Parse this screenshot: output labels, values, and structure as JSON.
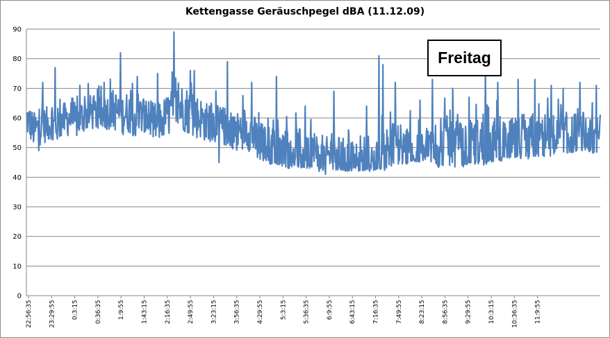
{
  "chart_data": {
    "type": "line",
    "title": "Kettengasse Geräuschpegel dBA (11.12.09)",
    "xlabel": "",
    "ylabel": "",
    "ylim": [
      0,
      90
    ],
    "yticks": [
      0,
      10,
      20,
      30,
      40,
      50,
      60,
      70,
      80,
      90
    ],
    "grid": "horizontal",
    "legend": "none",
    "annotation": "Freitag",
    "x_tick_labels": [
      "22:56:35",
      "23:29:55",
      "0:3:15",
      "0:36:35",
      "1:9:55",
      "1:43:15",
      "2:16:35",
      "2:49:55",
      "3:23:15",
      "3:56:35",
      "4:29:55",
      "5:3:15",
      "5:36:35",
      "6:9:55",
      "6:43:15",
      "7:16:35",
      "7:49:55",
      "8:23:15",
      "8:56:35",
      "9:29:55",
      "10:3:15",
      "10:36:35",
      "11:9:55"
    ],
    "series": [
      {
        "color": "#4f81bd",
        "baseline": [
          60,
          56,
          57,
          58,
          57,
          59,
          60,
          59,
          61,
          62,
          61,
          62,
          63,
          61,
          62,
          60,
          61,
          59,
          58,
          60,
          62,
          64,
          63,
          61,
          60,
          58,
          58,
          57,
          56,
          55,
          57,
          55,
          51,
          50,
          49,
          48,
          49,
          50,
          48,
          48,
          47,
          46,
          48,
          47,
          46,
          45,
          44,
          44,
          45,
          48,
          50,
          50,
          49,
          48,
          47,
          48,
          50,
          51,
          52,
          50,
          49,
          50,
          51,
          51,
          52,
          51,
          50,
          51,
          52,
          53,
          52,
          53,
          54,
          53,
          53,
          54,
          55,
          54,
          53,
          54
        ],
        "amplitude": [
          6,
          6,
          6,
          6,
          6,
          6,
          6,
          6,
          6,
          6,
          6,
          6,
          7,
          7,
          7,
          7,
          7,
          7,
          7,
          7,
          8,
          8,
          8,
          8,
          7,
          7,
          7,
          7,
          7,
          7,
          7,
          7,
          8,
          8,
          8,
          8,
          8,
          8,
          8,
          8,
          8,
          7,
          7,
          7,
          7,
          7,
          6,
          6,
          6,
          8,
          9,
          9,
          9,
          9,
          9,
          9,
          9,
          9,
          9,
          9,
          9,
          9,
          9,
          9,
          9,
          9,
          9,
          9,
          9,
          9,
          8,
          8,
          8,
          8,
          8,
          8,
          8,
          8,
          8,
          8
        ],
        "floor": [
          49,
          50,
          51,
          52,
          52,
          52,
          53,
          53,
          54,
          55,
          54,
          53,
          53,
          52,
          54,
          54,
          54,
          54,
          53,
          54,
          54,
          54,
          54,
          53,
          52,
          52,
          52,
          51,
          50,
          49,
          48,
          47,
          46,
          45,
          44,
          44,
          43,
          43,
          43,
          43,
          42,
          42,
          42,
          42,
          42,
          42,
          42,
          42,
          42,
          42,
          43,
          44,
          44,
          45,
          45,
          46,
          44,
          43,
          43,
          43,
          43,
          44,
          44,
          44,
          45,
          45,
          46,
          46,
          46,
          46,
          47,
          47,
          47,
          48,
          48,
          48,
          48,
          48,
          48,
          48
        ],
        "peaks": [
          [
            4,
            72
          ],
          [
            7,
            77
          ],
          [
            13,
            71
          ],
          [
            19,
            72
          ],
          [
            23,
            82
          ],
          [
            27,
            74
          ],
          [
            32,
            75
          ],
          [
            36,
            89
          ],
          [
            40,
            76
          ],
          [
            41,
            76
          ],
          [
            45,
            65
          ],
          [
            49,
            79
          ],
          [
            55,
            72
          ],
          [
            61,
            74
          ],
          [
            68,
            64
          ],
          [
            72,
            51
          ],
          [
            75,
            69
          ],
          [
            83,
            64
          ],
          [
            86,
            81
          ],
          [
            87,
            78
          ],
          [
            90,
            72
          ],
          [
            96,
            66
          ],
          [
            99,
            73
          ],
          [
            104,
            70
          ],
          [
            108,
            67
          ],
          [
            112,
            78
          ],
          [
            115,
            72
          ],
          [
            120,
            73
          ],
          [
            124,
            73
          ],
          [
            128,
            71
          ],
          [
            131,
            70
          ],
          [
            135,
            72
          ],
          [
            139,
            71
          ]
        ],
        "dips": [
          [
            3,
            49
          ],
          [
            47,
            45
          ],
          [
            73,
            41
          ]
        ]
      }
    ]
  }
}
